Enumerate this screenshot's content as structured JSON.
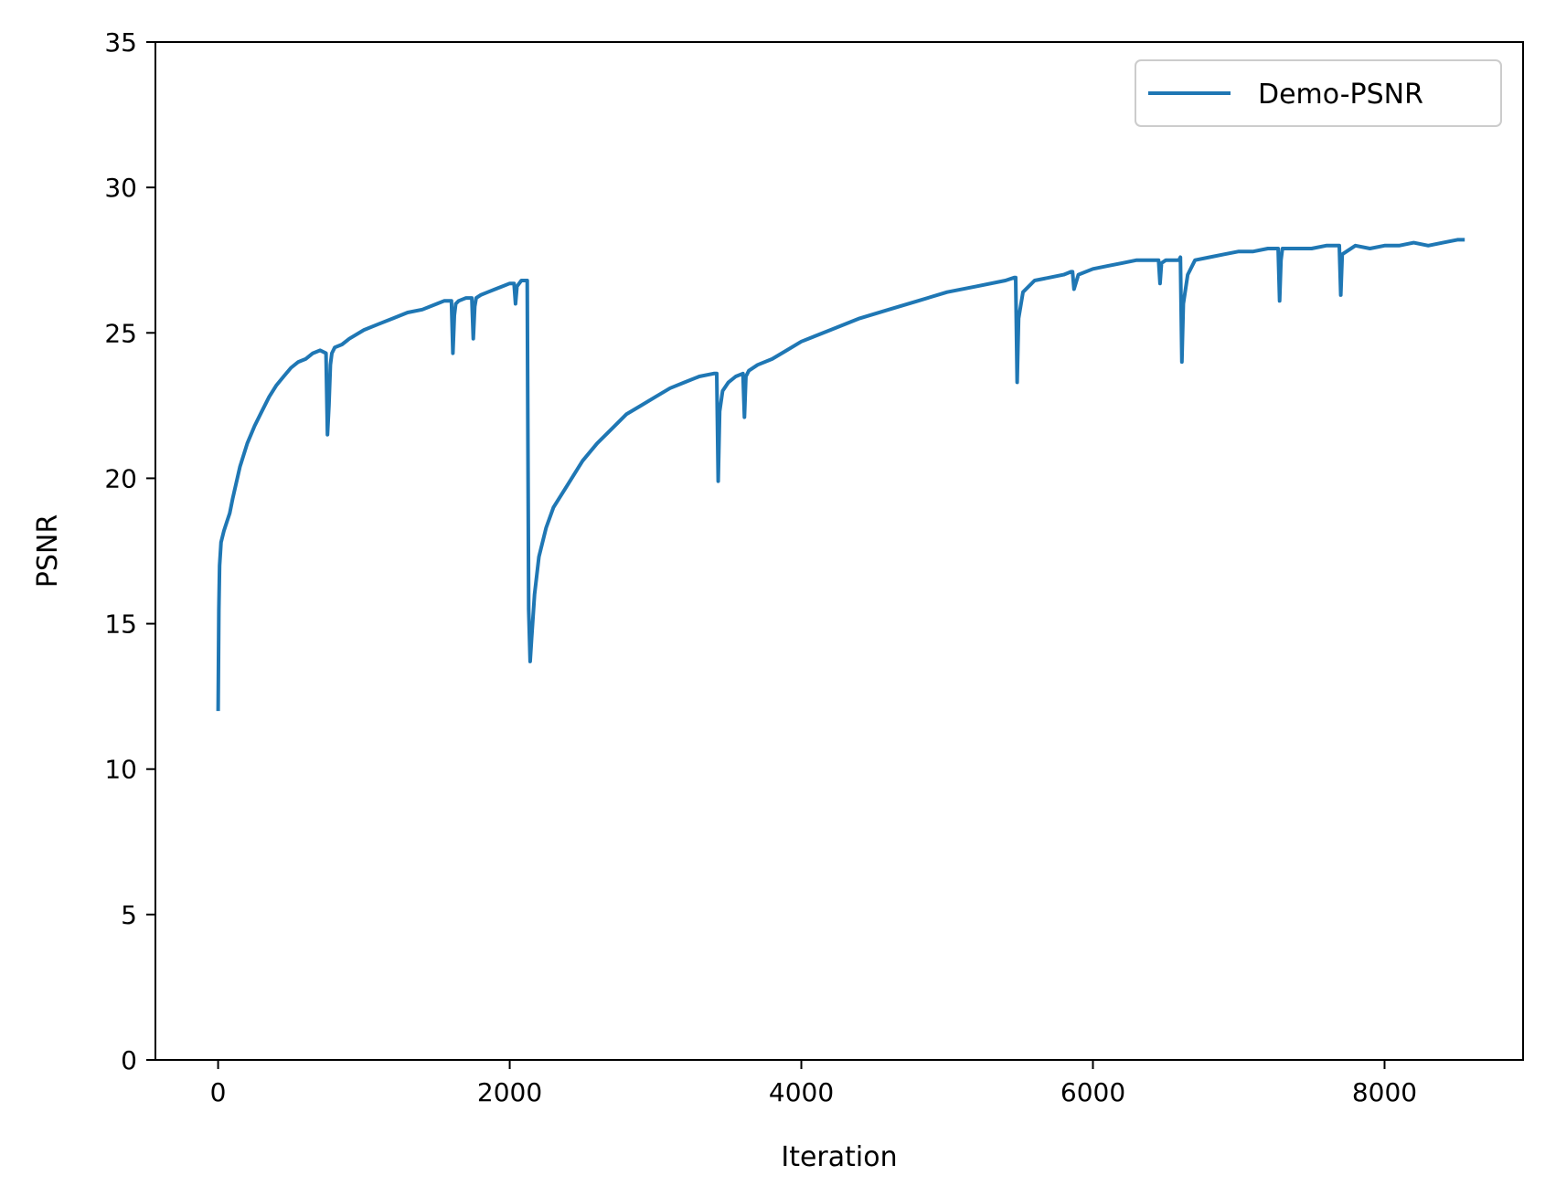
{
  "chart_data": {
    "type": "line",
    "title": "",
    "xlabel": "Iteration",
    "ylabel": "PSNR",
    "xlim": [
      -430,
      8950
    ],
    "ylim": [
      0,
      35
    ],
    "xticks": [
      0,
      2000,
      4000,
      6000,
      8000
    ],
    "yticks": [
      0,
      5,
      10,
      15,
      20,
      25,
      30,
      35
    ],
    "xtick_labels": [
      "0",
      "2000",
      "4000",
      "6000",
      "8000"
    ],
    "ytick_labels": [
      "0",
      "5",
      "10",
      "15",
      "20",
      "25",
      "30",
      "35"
    ],
    "grid": false,
    "legend": {
      "position": "top-right",
      "entries": [
        "Demo-PSNR"
      ]
    },
    "colors": {
      "series": "#1f77b4",
      "axes": "#000000"
    },
    "series": [
      {
        "name": "Demo-PSNR",
        "x": [
          0,
          5,
          10,
          20,
          40,
          60,
          80,
          100,
          150,
          200,
          250,
          300,
          350,
          400,
          450,
          500,
          550,
          600,
          650,
          700,
          740,
          750,
          760,
          770,
          780,
          800,
          850,
          900,
          1000,
          1100,
          1200,
          1300,
          1400,
          1500,
          1550,
          1600,
          1610,
          1620,
          1630,
          1650,
          1700,
          1740,
          1750,
          1760,
          1770,
          1800,
          1850,
          1900,
          1950,
          2000,
          2030,
          2040,
          2050,
          2080,
          2100,
          2120,
          2125,
          2130,
          2140,
          2150,
          2170,
          2200,
          2250,
          2300,
          2400,
          2500,
          2600,
          2700,
          2800,
          2900,
          3000,
          3100,
          3200,
          3300,
          3400,
          3420,
          3430,
          3440,
          3460,
          3500,
          3550,
          3600,
          3610,
          3620,
          3640,
          3700,
          3800,
          3900,
          4000,
          4200,
          4400,
          4600,
          4800,
          5000,
          5200,
          5400,
          5460,
          5470,
          5480,
          5490,
          5520,
          5600,
          5700,
          5800,
          5850,
          5860,
          5870,
          5900,
          6000,
          6100,
          6200,
          6300,
          6400,
          6450,
          6460,
          6470,
          6500,
          6590,
          6600,
          6610,
          6620,
          6650,
          6700,
          6800,
          6900,
          7000,
          7100,
          7200,
          7270,
          7280,
          7290,
          7300,
          7400,
          7500,
          7600,
          7680,
          7690,
          7700,
          7710,
          7800,
          7900,
          8000,
          8100,
          8200,
          8300,
          8400,
          8500,
          8550
        ],
        "y": [
          12.0,
          15.5,
          17.0,
          17.8,
          18.2,
          18.5,
          18.8,
          19.3,
          20.4,
          21.2,
          21.8,
          22.3,
          22.8,
          23.2,
          23.5,
          23.8,
          24.0,
          24.1,
          24.3,
          24.4,
          24.3,
          21.5,
          22.5,
          23.9,
          24.3,
          24.5,
          24.6,
          24.8,
          25.1,
          25.3,
          25.5,
          25.7,
          25.8,
          26.0,
          26.1,
          26.1,
          24.3,
          25.6,
          26.0,
          26.1,
          26.2,
          26.2,
          24.8,
          25.9,
          26.2,
          26.3,
          26.4,
          26.5,
          26.6,
          26.7,
          26.7,
          26.0,
          26.6,
          26.8,
          26.8,
          26.8,
          21.0,
          15.5,
          13.7,
          14.5,
          16.0,
          17.3,
          18.3,
          19.0,
          19.8,
          20.6,
          21.2,
          21.7,
          22.2,
          22.5,
          22.8,
          23.1,
          23.3,
          23.5,
          23.6,
          23.6,
          19.9,
          22.3,
          23.0,
          23.3,
          23.5,
          23.6,
          22.1,
          23.5,
          23.7,
          23.9,
          24.1,
          24.4,
          24.7,
          25.1,
          25.5,
          25.8,
          26.1,
          26.4,
          26.6,
          26.8,
          26.9,
          26.9,
          23.3,
          25.5,
          26.4,
          26.8,
          26.9,
          27.0,
          27.1,
          27.1,
          26.5,
          27.0,
          27.2,
          27.3,
          27.4,
          27.5,
          27.5,
          27.5,
          26.7,
          27.4,
          27.5,
          27.5,
          27.6,
          24.0,
          26.0,
          27.0,
          27.5,
          27.6,
          27.7,
          27.8,
          27.8,
          27.9,
          27.9,
          26.1,
          27.5,
          27.9,
          27.9,
          27.9,
          28.0,
          28.0,
          28.0,
          26.3,
          27.7,
          28.0,
          27.9,
          28.0,
          28.0,
          28.1,
          28.0,
          28.1,
          28.2,
          28.2
        ]
      }
    ]
  }
}
